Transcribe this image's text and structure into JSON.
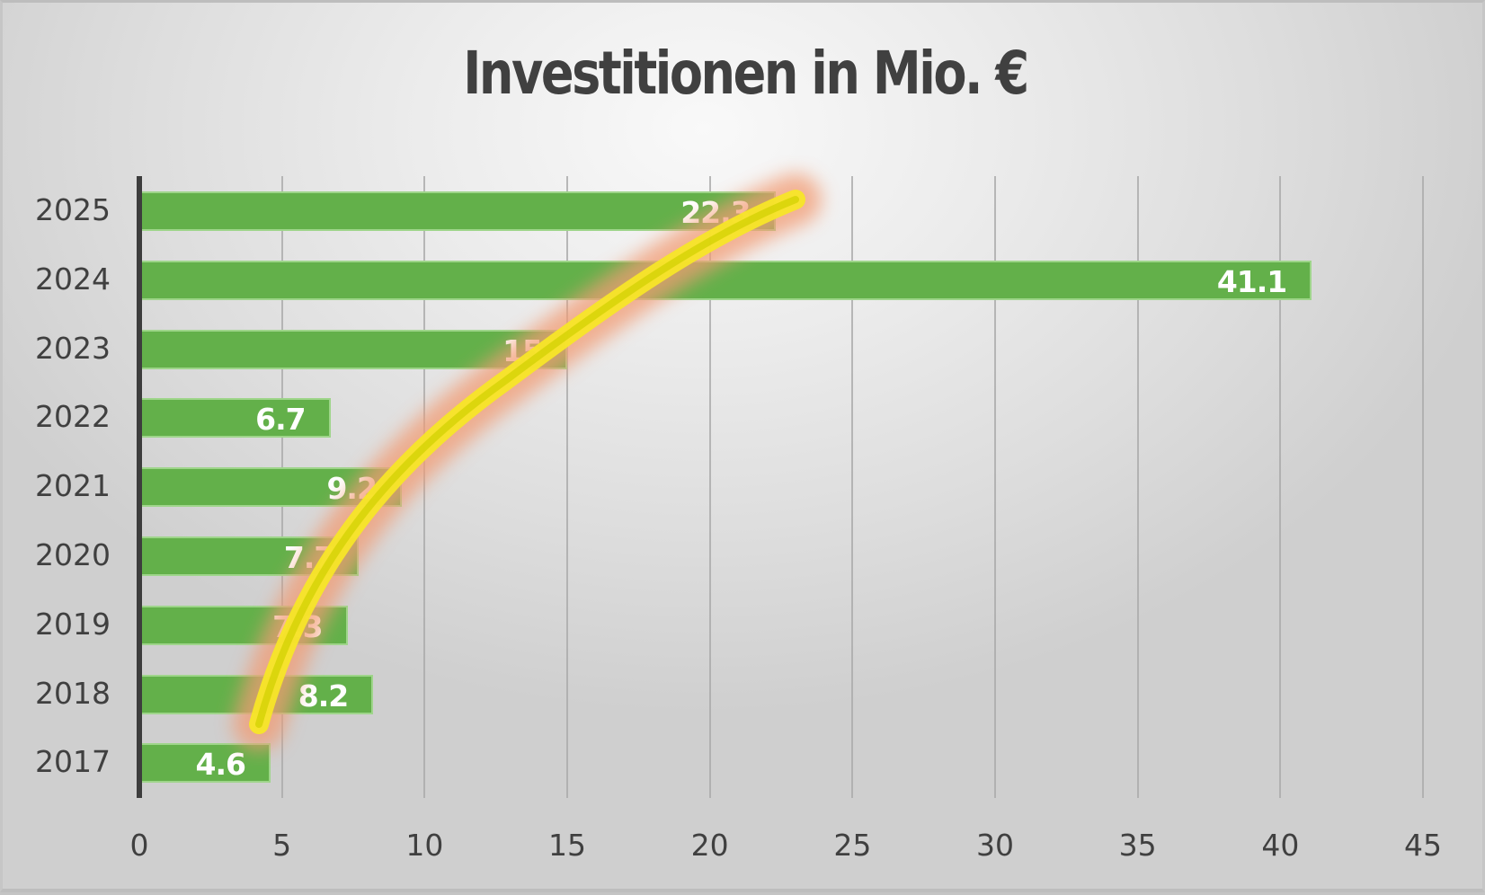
{
  "chart_data": {
    "type": "bar",
    "orientation": "horizontal",
    "title": "Investitionen in Mio. €",
    "xlabel": "",
    "ylabel": "",
    "categories": [
      "2025",
      "2024",
      "2023",
      "2022",
      "2021",
      "2020",
      "2019",
      "2018",
      "2017"
    ],
    "values": [
      22.3,
      41.1,
      15,
      6.7,
      9.2,
      7.7,
      7.3,
      8.2,
      4.6
    ],
    "data_labels": [
      "22.3",
      "41.1",
      "15",
      "6.7",
      "9.2",
      "7.7",
      "7.3",
      "8.2",
      "4.6"
    ],
    "xlim": [
      0,
      45
    ],
    "x_ticks": [
      "0",
      "5",
      "10",
      "15",
      "20",
      "25",
      "30",
      "35",
      "40",
      "45"
    ],
    "grid": "vertical",
    "legend": "none",
    "bar_color": "#63b04a",
    "annotations": [
      {
        "type": "freehand-curve",
        "description": "yellow highlighted upward curve with orange glow from 2017 bar to 2025 bar",
        "color": "#f3e21a",
        "glow_color": "#f2a37f",
        "from": {
          "category": "2017",
          "x": 4.6
        },
        "to": {
          "category": "2025",
          "x": 24.6
        }
      }
    ]
  }
}
